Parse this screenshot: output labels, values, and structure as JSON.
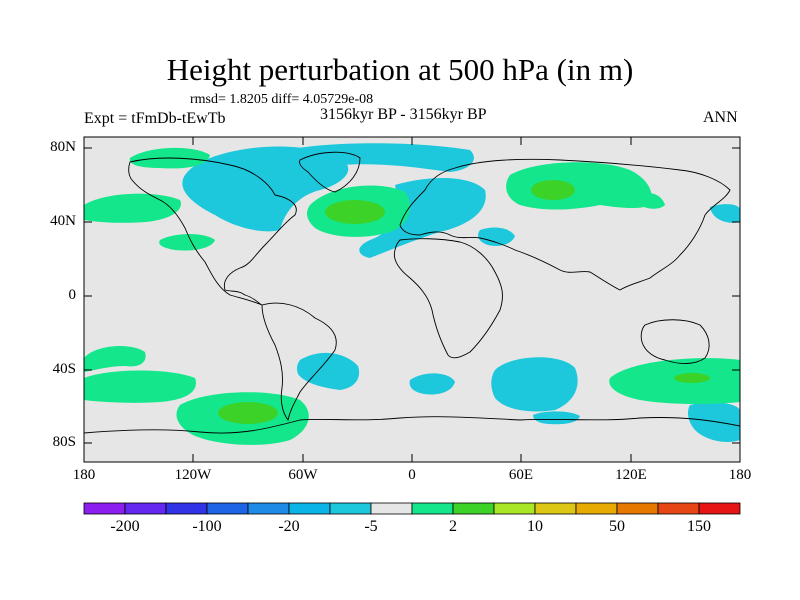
{
  "header": {
    "title": "Height perturbation at 500 hPa (in m)",
    "stats": "rmsd= 1.8205 diff= 4.05729e-08",
    "experiment": "Expt = tFmDb-tEwTb",
    "period": "3156kyr BP - 3156kyr BP",
    "season": "ANN"
  },
  "map": {
    "background_color": "#e6e6e6",
    "lat_labels": [
      "80N",
      "40N",
      "0",
      "40S",
      "80S"
    ],
    "lon_labels": [
      "180",
      "120W",
      "60W",
      "0",
      "60E",
      "120E",
      "180"
    ]
  },
  "colorbar": {
    "colors": [
      "#8c1ef0",
      "#6428f0",
      "#3232e6",
      "#1e64e6",
      "#1e8ce6",
      "#0ab4e6",
      "#1ec8dc",
      "#e6e6e6",
      "#14e68c",
      "#3cd228",
      "#aae628",
      "#dcc814",
      "#e6aa00",
      "#e67800",
      "#e64614",
      "#e61414"
    ],
    "labels": [
      "-200",
      "-100",
      "-20",
      "-5",
      "2",
      "10",
      "50",
      "150"
    ]
  }
}
